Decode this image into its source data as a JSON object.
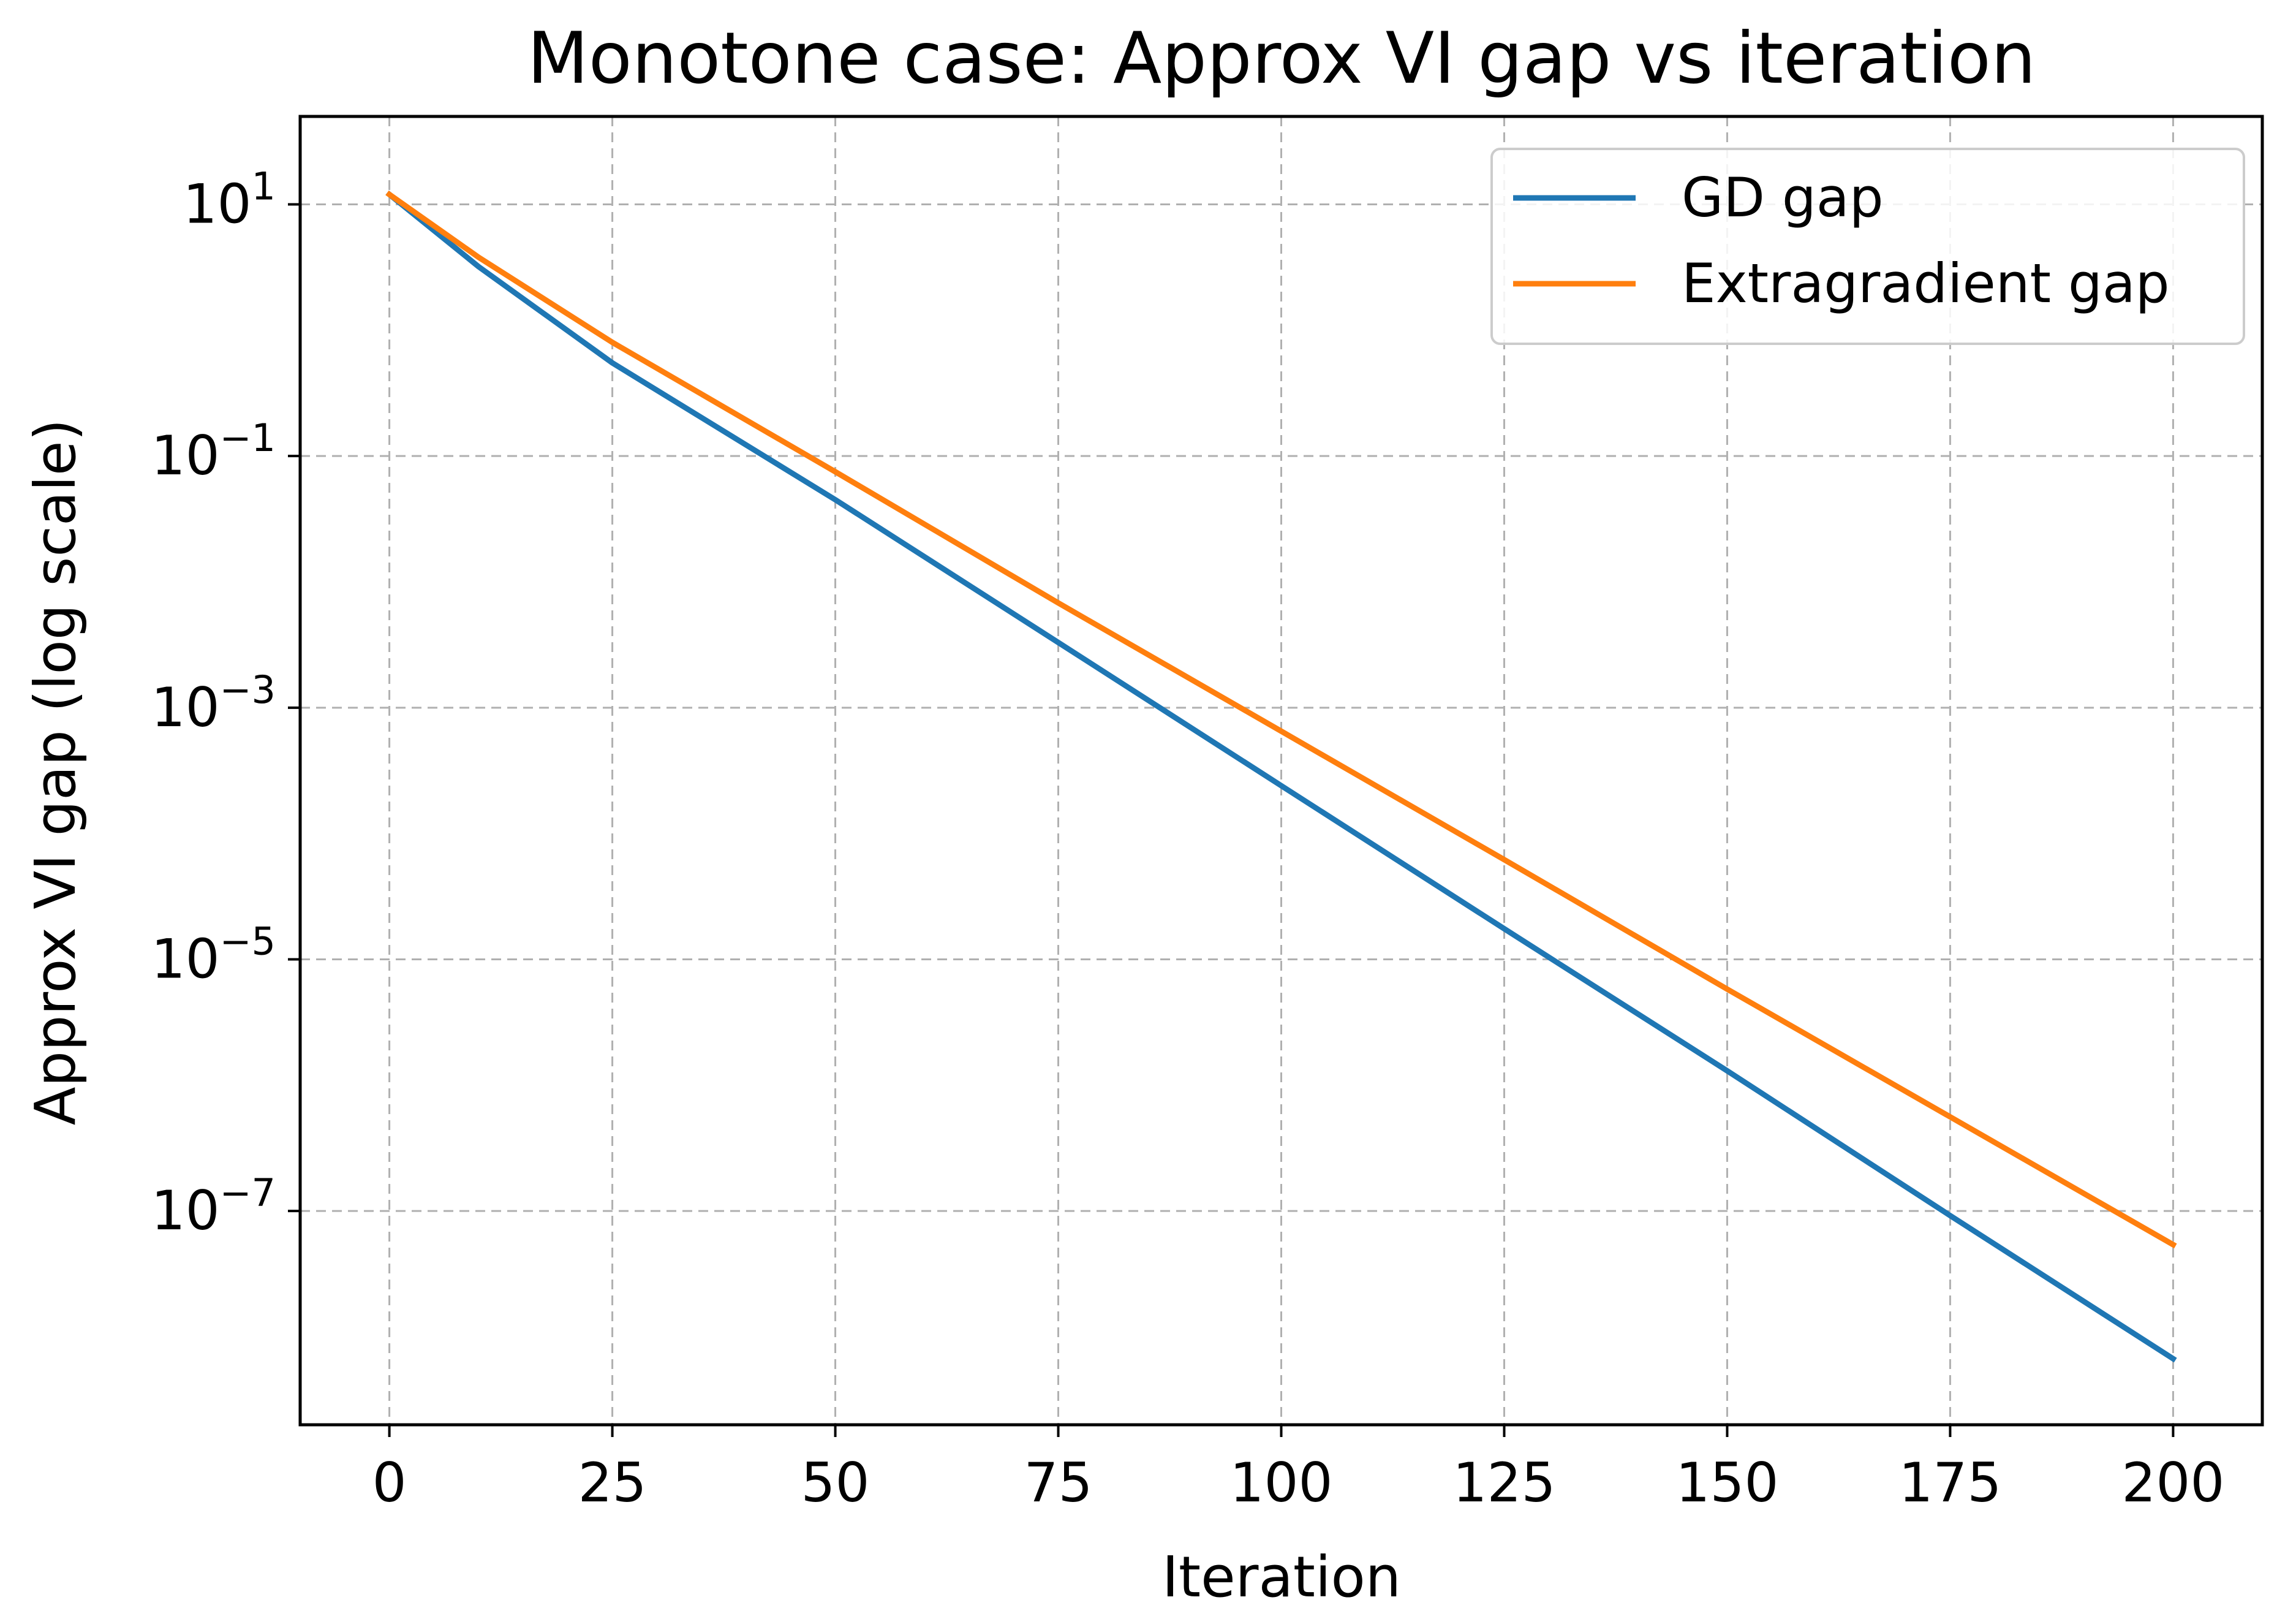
{
  "chart_data": {
    "type": "line",
    "title": "Monotone case: Approx VI gap vs iteration",
    "xlabel": "Iteration",
    "ylabel": "Approx VI gap (log scale)",
    "y_scale": "log",
    "grid": true,
    "grid_style": "dashed",
    "legend_position": "top-right",
    "xlim": [
      -10,
      210
    ],
    "ylim": [
      2e-09,
      50
    ],
    "x_ticks": [
      0,
      25,
      50,
      75,
      100,
      125,
      150,
      175,
      200
    ],
    "x_tick_labels": [
      "0",
      "25",
      "50",
      "75",
      "100",
      "125",
      "150",
      "175",
      "200"
    ],
    "y_ticks": [
      {
        "value": 10,
        "base": "10",
        "exp": "1"
      },
      {
        "value": 0.1,
        "base": "10",
        "exp": "−1"
      },
      {
        "value": 0.001,
        "base": "10",
        "exp": "−3"
      },
      {
        "value": 1e-05,
        "base": "10",
        "exp": "−5"
      },
      {
        "value": 1e-07,
        "base": "10",
        "exp": "−7"
      }
    ],
    "series": [
      {
        "name": "GD gap",
        "color": "#1f77b4",
        "x": [
          0,
          10,
          25,
          50,
          75,
          100,
          125,
          150,
          175,
          200
        ],
        "y": [
          12,
          3.2,
          0.55,
          0.045,
          0.0033,
          0.00024,
          1.75e-05,
          1.3e-06,
          9.2e-08,
          6.7e-09
        ]
      },
      {
        "name": "Extragradient gap",
        "color": "#ff7f0e",
        "x": [
          0,
          10,
          25,
          50,
          75,
          100,
          125,
          150,
          175,
          200
        ],
        "y": [
          12,
          3.8,
          0.8,
          0.075,
          0.0068,
          0.00065,
          6.2e-05,
          5.8e-06,
          5.6e-07,
          5.4e-08
        ]
      }
    ]
  }
}
